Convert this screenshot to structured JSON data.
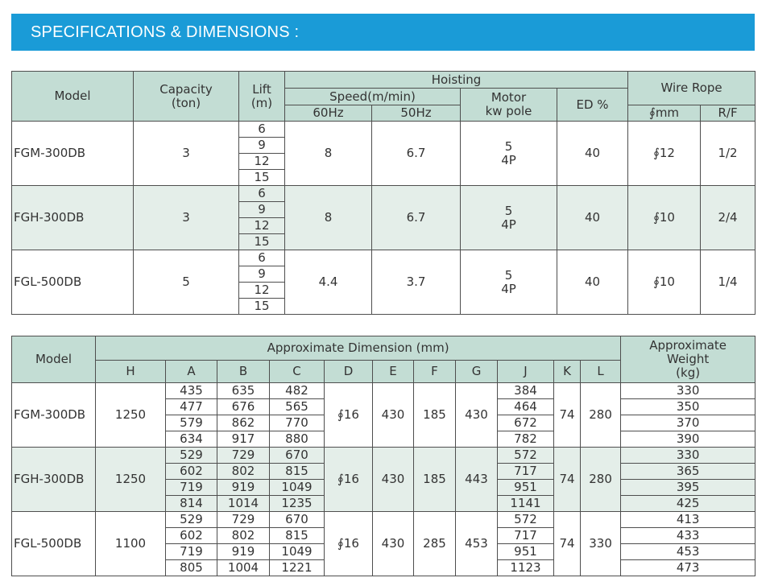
{
  "page": {
    "title": "SPECIFICATIONS & DIMENSIONS :",
    "colors": {
      "title_bar": "#1a9bd7",
      "header_bg": "#c3ddd4",
      "alt_row_bg": "#e4eee9"
    }
  },
  "hoisting_table": {
    "headers": {
      "model": "Model",
      "capacity": [
        "Capacity",
        "(ton)"
      ],
      "lift": [
        "Lift",
        "(m)"
      ],
      "hoisting": "Hoisting",
      "speed": "Speed(m/min)",
      "hz60": "60Hz",
      "hz50": "50Hz",
      "motor": [
        "Motor",
        "kw pole"
      ],
      "ed": "ED %",
      "wire_rope": "Wire Rope",
      "mm": "∮mm",
      "rf": "R/F"
    },
    "rows": [
      {
        "model": "FGM-300DB",
        "capacity": "3",
        "lifts": [
          "6",
          "9",
          "12",
          "15"
        ],
        "speed_60hz": "8",
        "speed_50hz": "6.7",
        "motor_kw": "5",
        "motor_pole": "4P",
        "ed": "40",
        "rope_mm": "∮12",
        "rf": "1/2"
      },
      {
        "model": "FGH-300DB",
        "capacity": "3",
        "lifts": [
          "6",
          "9",
          "12",
          "15"
        ],
        "speed_60hz": "8",
        "speed_50hz": "6.7",
        "motor_kw": "5",
        "motor_pole": "4P",
        "ed": "40",
        "rope_mm": "∮10",
        "rf": "2/4"
      },
      {
        "model": "FGL-500DB",
        "capacity": "5",
        "lifts": [
          "6",
          "9",
          "12",
          "15"
        ],
        "speed_60hz": "4.4",
        "speed_50hz": "3.7",
        "motor_kw": "5",
        "motor_pole": "4P",
        "ed": "40",
        "rope_mm": "∮10",
        "rf": "1/4"
      }
    ]
  },
  "dimension_table": {
    "headers": {
      "model": "Model",
      "approx_dimension": "Approximate Dimension (mm)",
      "columns": [
        "H",
        "A",
        "B",
        "C",
        "D",
        "E",
        "F",
        "G",
        "J",
        "K",
        "L"
      ],
      "weight": [
        "Approximate",
        "Weight",
        "(kg)"
      ]
    },
    "rows": [
      {
        "model": "FGM-300DB",
        "H": "1250",
        "A": [
          "435",
          "477",
          "579",
          "634"
        ],
        "B": [
          "635",
          "676",
          "862",
          "917"
        ],
        "C": [
          "482",
          "565",
          "770",
          "880"
        ],
        "D": "∮16",
        "E": "430",
        "F": "185",
        "G": "430",
        "J": [
          "384",
          "464",
          "672",
          "782"
        ],
        "K": "74",
        "L": "280",
        "weight": [
          "330",
          "350",
          "370",
          "390"
        ]
      },
      {
        "model": "FGH-300DB",
        "H": "1250",
        "A": [
          "529",
          "602",
          "719",
          "814"
        ],
        "B": [
          "729",
          "802",
          "919",
          "1014"
        ],
        "C": [
          "670",
          "815",
          "1049",
          "1235"
        ],
        "D": "∮16",
        "E": "430",
        "F": "185",
        "G": "443",
        "J": [
          "572",
          "717",
          "951",
          "1141"
        ],
        "K": "74",
        "L": "280",
        "weight": [
          "330",
          "365",
          "395",
          "425"
        ]
      },
      {
        "model": "FGL-500DB",
        "H": "1100",
        "A": [
          "529",
          "602",
          "719",
          "805"
        ],
        "B": [
          "729",
          "802",
          "919",
          "1004"
        ],
        "C": [
          "670",
          "815",
          "1049",
          "1221"
        ],
        "D": "∮16",
        "E": "430",
        "F": "285",
        "G": "453",
        "J": [
          "572",
          "717",
          "951",
          "1123"
        ],
        "K": "74",
        "L": "330",
        "weight": [
          "413",
          "433",
          "453",
          "473"
        ]
      }
    ]
  }
}
